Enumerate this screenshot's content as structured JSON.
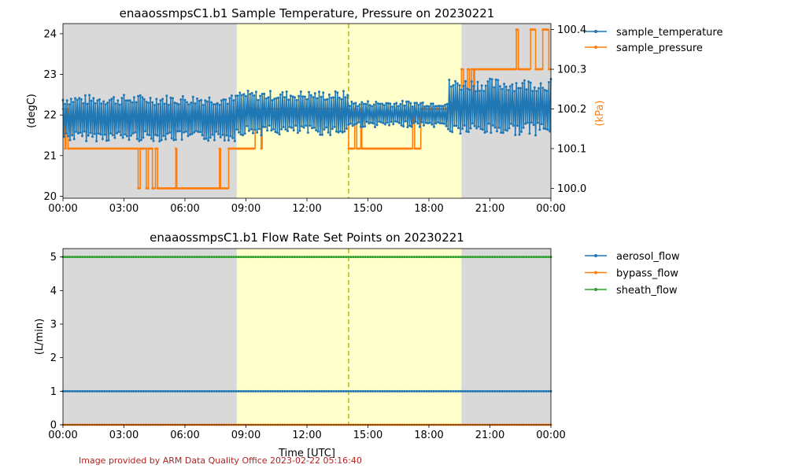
{
  "colors": {
    "temperature": "#1f77b4",
    "pressure": "#ff7f0e",
    "aerosol": "#1f77b4",
    "bypass": "#ff7f0e",
    "sheath": "#2ca02c",
    "night_shade": "#d9d9d9",
    "day_shade": "#ffffcc",
    "marker_line": "#bcbd22",
    "credit_text": "#b22222"
  },
  "credit": "Image provided by ARM Data Quality Office 2023-02-22 05:16:40",
  "chart_data": [
    {
      "type": "line",
      "title": "enaaossmpsC1.b1 Sample Temperature, Pressure on 20230221",
      "xlabel": "",
      "ylabel": "(degC)",
      "y2label": "(kPa)",
      "xlim_hours": [
        0,
        24
      ],
      "ylim": [
        19.95,
        24.25
      ],
      "y2lim": [
        99.975,
        100.415
      ],
      "x_ticks": [
        "00:00",
        "03:00",
        "06:00",
        "09:00",
        "12:00",
        "15:00",
        "18:00",
        "21:00",
        "00:00"
      ],
      "y_ticks": [
        20,
        21,
        22,
        23,
        24
      ],
      "y2_ticks": [
        "100.0",
        "100.1",
        "100.2",
        "100.3",
        "100.4"
      ],
      "grid": false,
      "legend_position": "outside-right",
      "shading": [
        {
          "kind": "night",
          "start": 0,
          "end": 8.55
        },
        {
          "kind": "day",
          "start": 8.55,
          "end": 19.6
        },
        {
          "kind": "night",
          "start": 19.6,
          "end": 24
        }
      ],
      "vline_hour": 14.05,
      "series": [
        {
          "name": "sample_temperature",
          "axis": "left",
          "temperature_bands": [
            {
              "start": 0,
              "end": 8.5,
              "low": 21.35,
              "high": 22.5
            },
            {
              "start": 8.5,
              "end": 14.0,
              "low": 21.5,
              "high": 22.6
            },
            {
              "start": 14.0,
              "end": 18.9,
              "low": 21.7,
              "high": 22.35
            },
            {
              "start": 18.9,
              "end": 24.0,
              "low": 21.5,
              "high": 22.9
            }
          ],
          "sample_count": 480
        },
        {
          "name": "sample_pressure",
          "axis": "right",
          "steps": [
            [
              0.0,
              100.2
            ],
            [
              0.1,
              100.1
            ],
            [
              0.15,
              100.2
            ],
            [
              0.25,
              100.1
            ],
            [
              3.7,
              100.0
            ],
            [
              3.8,
              100.1
            ],
            [
              4.1,
              100.0
            ],
            [
              4.2,
              100.1
            ],
            [
              4.4,
              100.0
            ],
            [
              4.55,
              100.1
            ],
            [
              4.65,
              100.0
            ],
            [
              5.5,
              100.0
            ],
            [
              5.55,
              100.1
            ],
            [
              5.6,
              100.0
            ],
            [
              7.7,
              100.1
            ],
            [
              7.75,
              100.0
            ],
            [
              8.1,
              100.0
            ],
            [
              8.15,
              100.1
            ],
            [
              9.45,
              100.2
            ],
            [
              9.75,
              100.1
            ],
            [
              9.8,
              100.2
            ],
            [
              14.05,
              100.1
            ],
            [
              14.35,
              100.2
            ],
            [
              14.45,
              100.1
            ],
            [
              14.65,
              100.2
            ],
            [
              14.7,
              100.1
            ],
            [
              17.2,
              100.2
            ],
            [
              17.3,
              100.1
            ],
            [
              17.6,
              100.2
            ],
            [
              19.6,
              100.3
            ],
            [
              19.7,
              100.2
            ],
            [
              19.9,
              100.3
            ],
            [
              20.0,
              100.2
            ],
            [
              20.1,
              100.3
            ],
            [
              20.2,
              100.2
            ],
            [
              20.25,
              100.3
            ],
            [
              22.3,
              100.4
            ],
            [
              22.4,
              100.3
            ],
            [
              23.0,
              100.4
            ],
            [
              23.25,
              100.3
            ],
            [
              23.6,
              100.4
            ],
            [
              23.9,
              100.3
            ],
            [
              24.0,
              100.3
            ]
          ]
        }
      ]
    },
    {
      "type": "line",
      "title": "enaaossmpsC1.b1 Flow Rate Set Points on 20230221",
      "xlabel": "Time [UTC]",
      "ylabel": "(L/min)",
      "xlim_hours": [
        0,
        24
      ],
      "ylim": [
        0,
        5.25
      ],
      "x_ticks": [
        "00:00",
        "03:00",
        "06:00",
        "09:00",
        "12:00",
        "15:00",
        "18:00",
        "21:00",
        "00:00"
      ],
      "y_ticks": [
        0,
        1,
        2,
        3,
        4,
        5
      ],
      "grid": false,
      "legend_position": "outside-right",
      "shading": [
        {
          "kind": "night",
          "start": 0,
          "end": 8.55
        },
        {
          "kind": "day",
          "start": 8.55,
          "end": 19.6
        },
        {
          "kind": "night",
          "start": 19.6,
          "end": 24
        }
      ],
      "vline_hour": 14.05,
      "series": [
        {
          "name": "aerosol_flow",
          "value": 1.0,
          "sample_count": 200
        },
        {
          "name": "bypass_flow",
          "value": 0.0,
          "sample_count": 200
        },
        {
          "name": "sheath_flow",
          "value": 5.0,
          "sample_count": 200
        }
      ]
    }
  ]
}
